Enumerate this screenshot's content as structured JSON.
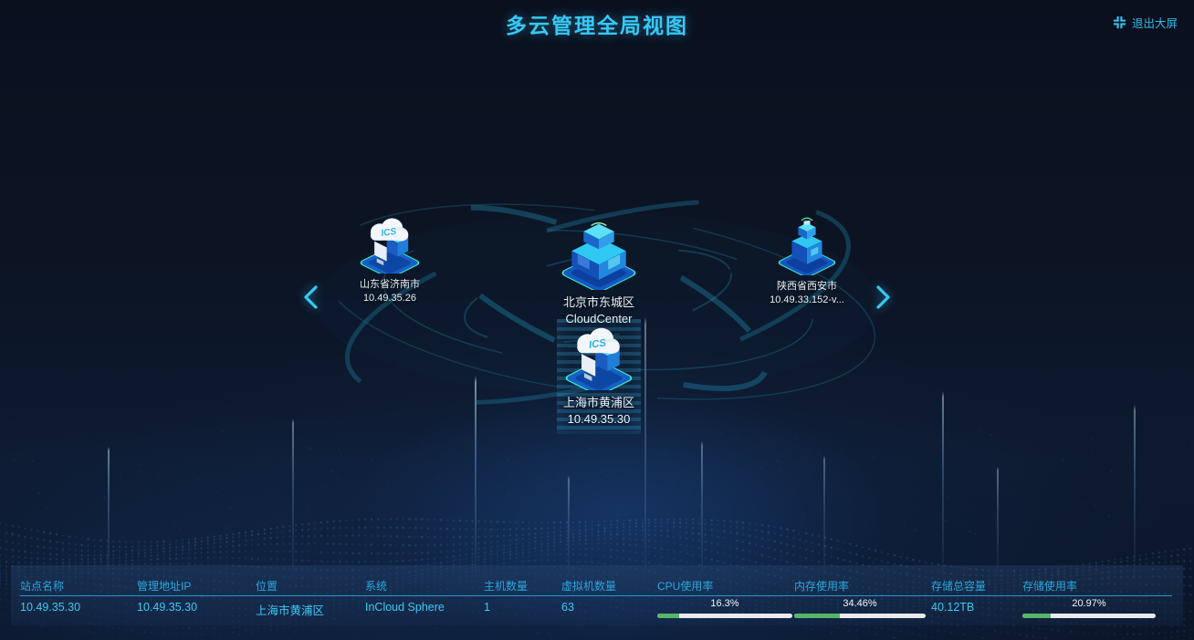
{
  "header": {
    "title": "多云管理全局视图",
    "exit_label": "退出大屏"
  },
  "topology": {
    "icon_label": "ICS",
    "nodes": [
      {
        "id": "jinan",
        "name": "山东省济南市",
        "sub": "10.49.35.26"
      },
      {
        "id": "beijing",
        "name": "北京市东城区",
        "sub": "CloudCenter"
      },
      {
        "id": "xian",
        "name": "陕西省西安市",
        "sub": "10.49.33.152-v..."
      },
      {
        "id": "shanghai",
        "name": "上海市黄浦区",
        "sub": "10.49.35.30",
        "selected": true
      }
    ]
  },
  "table": {
    "columns": [
      "站点名称",
      "管理地址IP",
      "位置",
      "系统",
      "主机数量",
      "虚拟机数量",
      "CPU使用率",
      "内存使用率",
      "存储总容量",
      "存储使用率"
    ],
    "rows": [
      {
        "site": "10.49.35.30",
        "ip": "10.49.35.30",
        "location": "上海市黄浦区",
        "system": "InCloud Sphere",
        "hosts": "1",
        "vms": "63",
        "cpu": "16.3%",
        "cpu_pct": 16.3,
        "mem": "34.46%",
        "mem_pct": 34.46,
        "storage_total": "40.12TB",
        "storage_used": "20.97%",
        "storage_pct": 20.97
      }
    ]
  },
  "colors": {
    "accent": "#38c8f6",
    "header_text": "#2aa8dc",
    "cell_text": "#3ec9f2",
    "bar_fill": "#57b567",
    "bar_track": "#e8eaee",
    "divider": "#1f9ad2"
  }
}
